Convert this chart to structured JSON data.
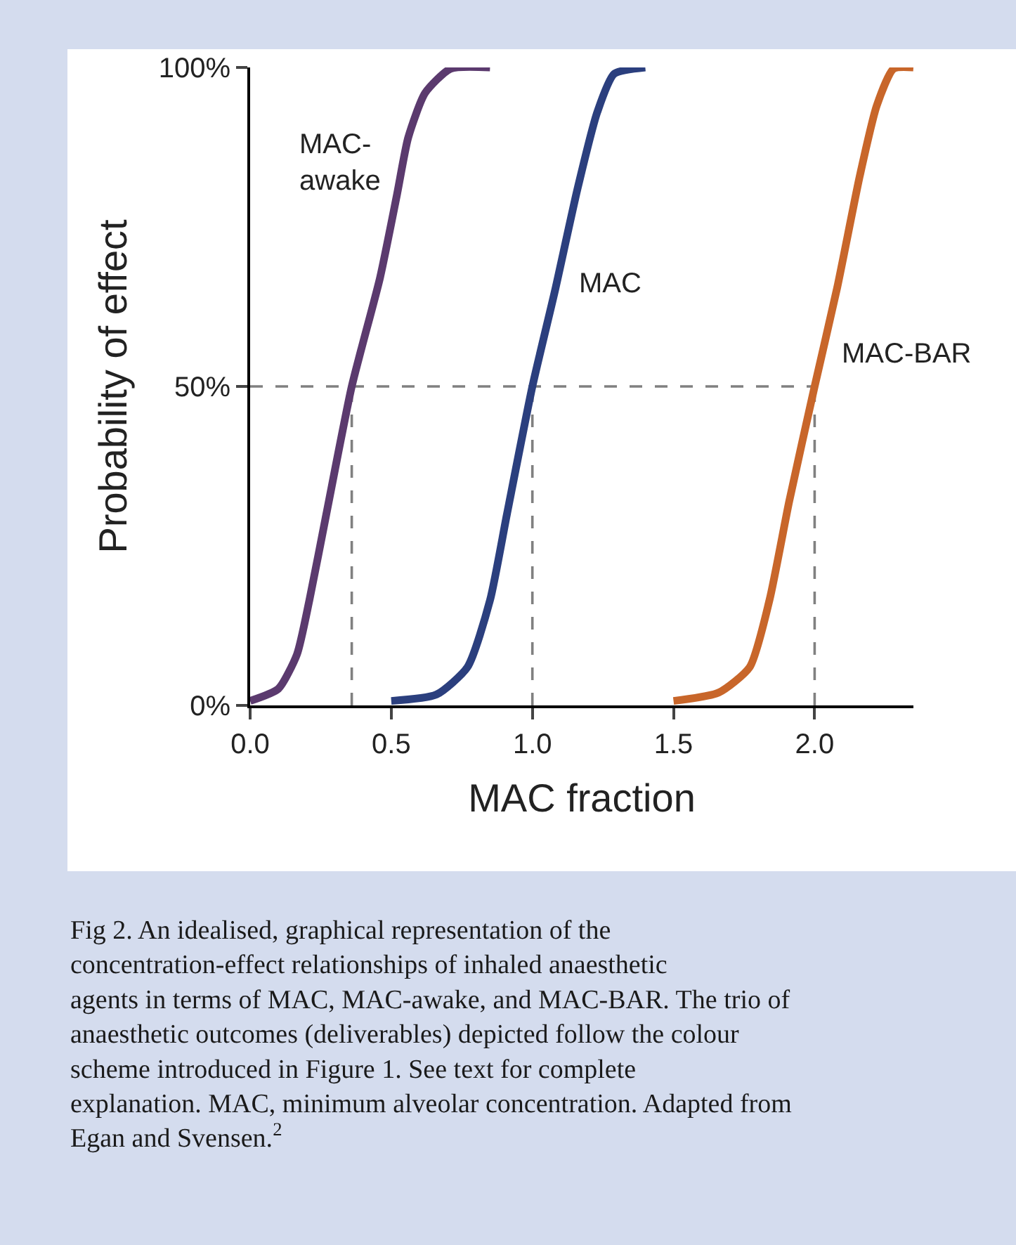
{
  "chart_data": {
    "type": "line",
    "xlabel": "MAC fraction",
    "ylabel": "Probability of effect",
    "series": [
      {
        "name": "MAC-\nawake",
        "color": "#5b3a6e",
        "x": [
          0,
          0.1,
          0.166,
          0.21,
          0.27,
          0.36,
          0.46,
          0.52,
          0.56,
          0.62,
          0.71,
          0.85
        ],
        "values": [
          0.7,
          2.6,
          8,
          16.5,
          30,
          50,
          67,
          80,
          89,
          96,
          99.8,
          100
        ]
      },
      {
        "name": "MAC",
        "color": "#2b3f7e",
        "x": [
          0.5,
          0.66,
          0.77,
          0.85,
          0.91,
          1.0,
          1.08,
          1.16,
          1.23,
          1.29,
          1.4
        ],
        "values": [
          0.7,
          1.7,
          6,
          16.5,
          30,
          50,
          65,
          81,
          93,
          99,
          100
        ]
      },
      {
        "name": "MAC-BAR",
        "color": "#c8662a",
        "x": [
          1.5,
          1.66,
          1.77,
          1.84,
          1.91,
          2.0,
          2.08,
          2.16,
          2.22,
          2.28,
          2.35
        ],
        "values": [
          0.7,
          2,
          6,
          16.5,
          32,
          50,
          65.5,
          83,
          94,
          99.8,
          100
        ]
      }
    ],
    "xlim": [
      0,
      2.35
    ],
    "xticks": [
      {
        "value": 0,
        "label": "0.0"
      },
      {
        "value": 0.5,
        "label": "0.5"
      },
      {
        "value": 1,
        "label": "1.0"
      },
      {
        "value": 1.5,
        "label": "1.5"
      },
      {
        "value": 2,
        "label": "2.0"
      }
    ],
    "ylim": [
      0,
      100
    ],
    "yticks": [
      {
        "value": 0,
        "label": "0%"
      },
      {
        "value": 50,
        "label": "50%"
      },
      {
        "value": 100,
        "label": "100%"
      }
    ],
    "ref_lines": [
      {
        "axis": "y",
        "value": 50,
        "color": "#808080",
        "line_style": "dashed"
      },
      {
        "axis": "x",
        "value": 0.36,
        "color": "#808080",
        "line_style": "dashed"
      },
      {
        "axis": "x",
        "value": 1.0,
        "color": "#808080",
        "line_style": "dashed"
      },
      {
        "axis": "x",
        "value": 2.0,
        "color": "#808080",
        "line_style": "dashed"
      }
    ],
    "grid": false,
    "legend": false,
    "marker": "none",
    "line_style": "solid",
    "annotations": [
      "Fig 2. An idealised, graphical representation of the concentration-effect relationships of inhaled anaesthetic agents in terms of MAC, MAC-awake, and MAC-BAR. The trio of anaesthetic outcomes (deliverables) depicted follow the colour scheme introduced in Figure 1. See text for complete explanation. MAC, minimum alveolar concentration. Adapted from Egan and Svensen.$^{2}$"
    ]
  }
}
